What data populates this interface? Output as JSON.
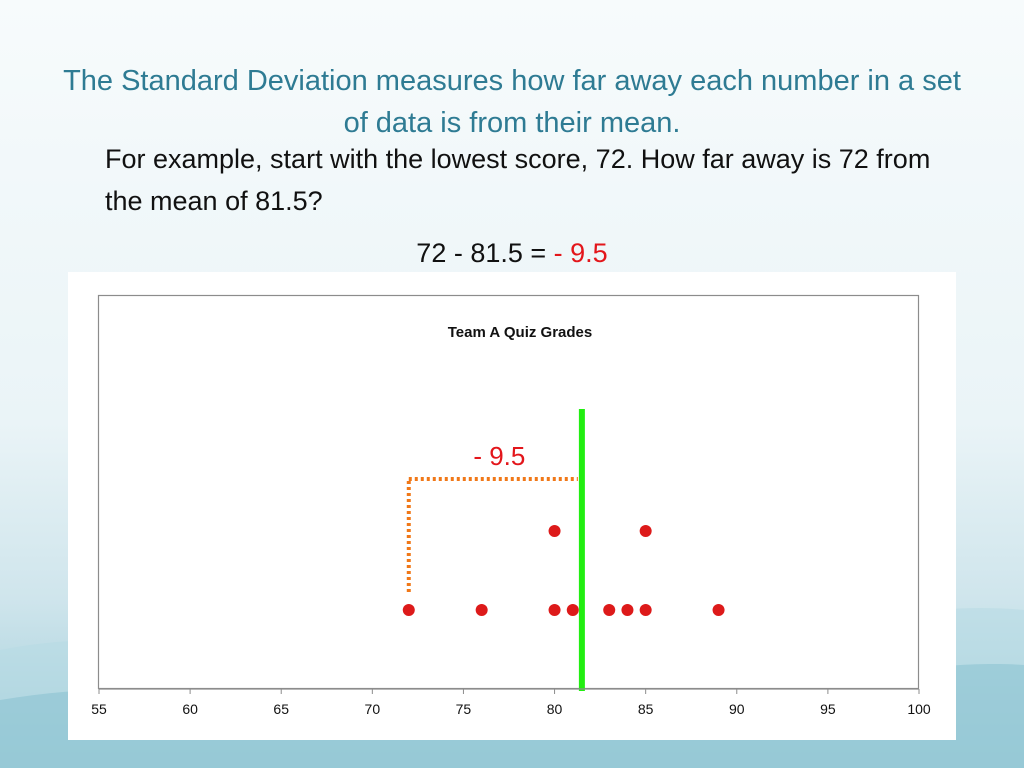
{
  "slide": {
    "title": "The Standard Deviation measures how far away each number in a set of data is from their mean.",
    "body": "For example, start with the lowest score, 72.  How far away is 72 from the mean of 81.5?",
    "equation_prefix": "72 - 81.5 = ",
    "equation_result": "- 9.5"
  },
  "colors": {
    "title": "#2e7b93",
    "negative": "#e3161b",
    "points": "#dd1a1a",
    "mean_line": "#22ee11",
    "deviation_bracket": "#f07818"
  },
  "chart_data": {
    "type": "scatter",
    "title": "Team A Quiz Grades",
    "xlabel": "",
    "ylabel": "",
    "xlim": [
      55,
      100
    ],
    "x_ticks": [
      55,
      60,
      65,
      70,
      75,
      80,
      85,
      90,
      95,
      100
    ],
    "grid": false,
    "points": [
      {
        "x": 72,
        "stack": 1
      },
      {
        "x": 76,
        "stack": 1
      },
      {
        "x": 80,
        "stack": 1
      },
      {
        "x": 80,
        "stack": 2
      },
      {
        "x": 81,
        "stack": 1
      },
      {
        "x": 83,
        "stack": 1
      },
      {
        "x": 84,
        "stack": 1
      },
      {
        "x": 85,
        "stack": 1
      },
      {
        "x": 85,
        "stack": 2
      },
      {
        "x": 89,
        "stack": 1
      }
    ],
    "mean": 81.5,
    "deviation": {
      "from": 72,
      "to": 81.5,
      "label": "- 9.5"
    }
  }
}
